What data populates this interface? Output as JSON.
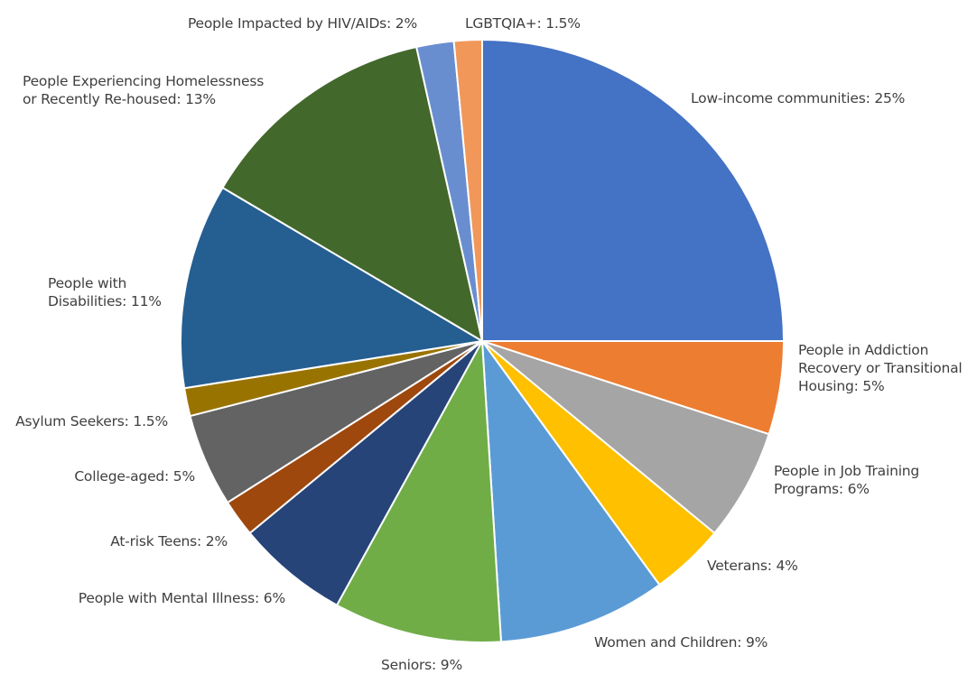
{
  "chart_data": {
    "type": "pie",
    "title": "",
    "slices": [
      {
        "label": "Low-income communities: 25%",
        "value": 25,
        "color": "#4472C4"
      },
      {
        "label": "People in Addiction Recovery or Transitional Housing: 5%",
        "value": 5,
        "color": "#ED7D31"
      },
      {
        "label": "People in Job Training Programs: 6%",
        "value": 6,
        "color": "#A5A5A5"
      },
      {
        "label": "Veterans: 4%",
        "value": 4,
        "color": "#FFC000"
      },
      {
        "label": "Women and Children: 9%",
        "value": 9,
        "color": "#5B9BD5"
      },
      {
        "label": "Seniors: 9%",
        "value": 9,
        "color": "#70AD47"
      },
      {
        "label": "People with Mental Illness: 6%",
        "value": 6,
        "color": "#264478"
      },
      {
        "label": "At-risk Teens: 2%",
        "value": 2,
        "color": "#9E480E"
      },
      {
        "label": "College-aged: 5%",
        "value": 5,
        "color": "#636363"
      },
      {
        "label": "Asylum Seekers: 1.5%",
        "value": 1.5,
        "color": "#997300"
      },
      {
        "label": "People with Disabilities: 11%",
        "value": 11,
        "color": "#255E91"
      },
      {
        "label": "People Experiencing Homelessness or Recently Re-housed: 13%",
        "value": 13,
        "color": "#43682B"
      },
      {
        "label": "People Impacted by HIV/AIDs: 2%",
        "value": 2,
        "color": "#698ED0"
      },
      {
        "label": "LGBTQIA+: 1.5%",
        "value": 1.5,
        "color": "#F1975A"
      }
    ],
    "legend": "none"
  }
}
